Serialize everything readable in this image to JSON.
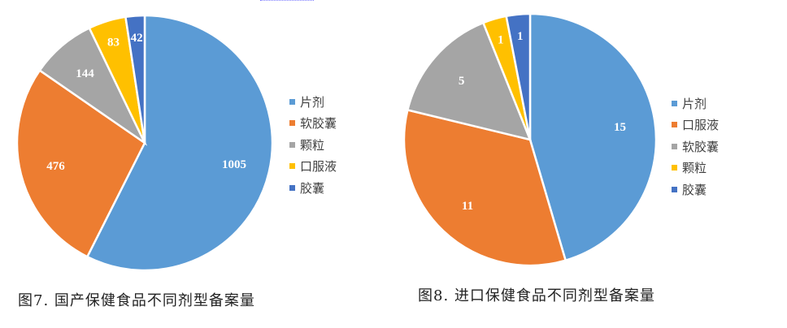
{
  "colors": {
    "blue_light": "#5b9bd5",
    "orange": "#ed7d31",
    "gray": "#a5a5a5",
    "yellow": "#ffc000",
    "blue_dark": "#4472c4"
  },
  "figures": [
    {
      "caption": "图7. 国产保健食品不同剂型备案量",
      "legend": [
        {
          "label": "片剂",
          "color": "#5b9bd5"
        },
        {
          "label": "软胶囊",
          "color": "#ed7d31"
        },
        {
          "label": "颗粒",
          "color": "#a5a5a5"
        },
        {
          "label": "口服液",
          "color": "#ffc000"
        },
        {
          "label": "胶囊",
          "color": "#4472c4"
        }
      ]
    },
    {
      "caption": "图8. 进口保健食品不同剂型备案量",
      "legend": [
        {
          "label": "片剂",
          "color": "#5b9bd5"
        },
        {
          "label": "口服液",
          "color": "#ed7d31"
        },
        {
          "label": "软胶囊",
          "color": "#a5a5a5"
        },
        {
          "label": "颗粒",
          "color": "#ffc000"
        },
        {
          "label": "胶囊",
          "color": "#4472c4"
        }
      ]
    }
  ],
  "chart_data": [
    {
      "type": "pie",
      "title": "图7. 国产保健食品不同剂型备案量",
      "categories": [
        "片剂",
        "软胶囊",
        "颗粒",
        "口服液",
        "胶囊"
      ],
      "values": [
        1005,
        476,
        144,
        83,
        42
      ],
      "colors": [
        "#5b9bd5",
        "#ed7d31",
        "#a5a5a5",
        "#ffc000",
        "#4472c4"
      ],
      "data_labels": [
        "1005",
        "476",
        "144",
        "83",
        "42"
      ],
      "legend_position": "right"
    },
    {
      "type": "pie",
      "title": "图8. 进口保健食品不同剂型备案量",
      "categories": [
        "片剂",
        "口服液",
        "软胶囊",
        "颗粒",
        "胶囊"
      ],
      "values": [
        15,
        11,
        5,
        1,
        1
      ],
      "colors": [
        "#5b9bd5",
        "#ed7d31",
        "#a5a5a5",
        "#ffc000",
        "#4472c4"
      ],
      "data_labels": [
        "15",
        "11",
        "5",
        "1",
        "1"
      ],
      "legend_position": "right"
    }
  ]
}
